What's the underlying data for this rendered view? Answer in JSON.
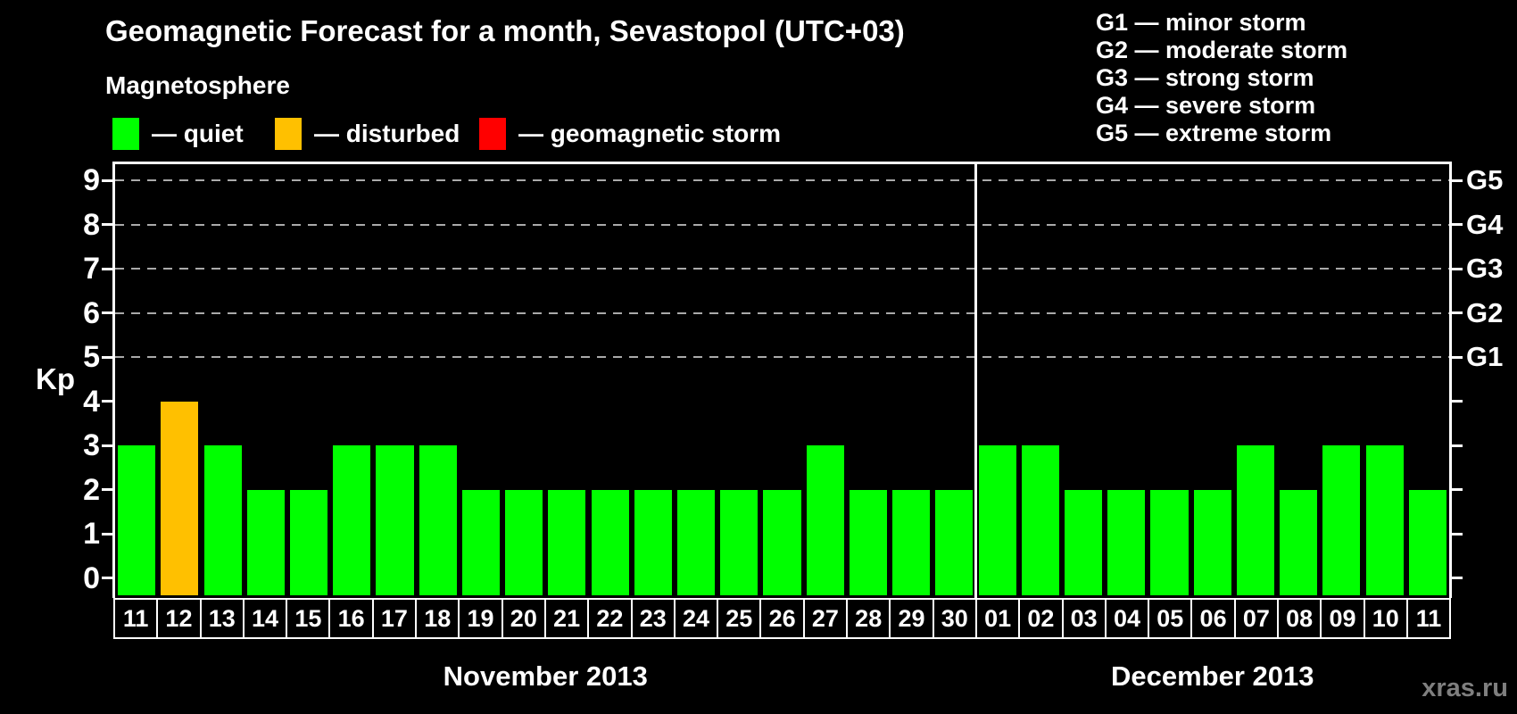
{
  "title": "Geomagnetic Forecast for a month, Sevastopol (UTC+03)",
  "subtitle": "Magnetosphere",
  "watermark": "xras.ru",
  "colors": {
    "quiet": "#00FF00",
    "disturbed": "#FFC000",
    "storm": "#FF0000",
    "axis": "#FFFFFF",
    "grid": "#AAAAAA",
    "background": "#000000",
    "watermark_text": "#7F7F7F"
  },
  "legend": {
    "items": [
      {
        "key": "quiet",
        "label": "— quiet"
      },
      {
        "key": "disturbed",
        "label": "— disturbed"
      },
      {
        "key": "storm",
        "label": "— geomagnetic storm"
      }
    ]
  },
  "g_legend": [
    "G1 — minor storm",
    "G2 — moderate storm",
    "G3 — strong storm",
    "G4 — severe storm",
    "G5 — extreme storm"
  ],
  "axis": {
    "y_label": "Kp",
    "y_ticks": [
      0,
      1,
      2,
      3,
      4,
      5,
      6,
      7,
      8,
      9
    ],
    "g_ticks": [
      {
        "label": "G5",
        "kp": 9
      },
      {
        "label": "G4",
        "kp": 8
      },
      {
        "label": "G3",
        "kp": 7
      },
      {
        "label": "G2",
        "kp": 6
      },
      {
        "label": "G1",
        "kp": 5
      }
    ]
  },
  "months": [
    {
      "label": "November 2013",
      "days": [
        {
          "day": "11",
          "kp": 3,
          "state": "quiet"
        },
        {
          "day": "12",
          "kp": 4,
          "state": "disturbed"
        },
        {
          "day": "13",
          "kp": 3,
          "state": "quiet"
        },
        {
          "day": "14",
          "kp": 2,
          "state": "quiet"
        },
        {
          "day": "15",
          "kp": 2,
          "state": "quiet"
        },
        {
          "day": "16",
          "kp": 3,
          "state": "quiet"
        },
        {
          "day": "17",
          "kp": 3,
          "state": "quiet"
        },
        {
          "day": "18",
          "kp": 3,
          "state": "quiet"
        },
        {
          "day": "19",
          "kp": 2,
          "state": "quiet"
        },
        {
          "day": "20",
          "kp": 2,
          "state": "quiet"
        },
        {
          "day": "21",
          "kp": 2,
          "state": "quiet"
        },
        {
          "day": "22",
          "kp": 2,
          "state": "quiet"
        },
        {
          "day": "23",
          "kp": 2,
          "state": "quiet"
        },
        {
          "day": "24",
          "kp": 2,
          "state": "quiet"
        },
        {
          "day": "25",
          "kp": 2,
          "state": "quiet"
        },
        {
          "day": "26",
          "kp": 2,
          "state": "quiet"
        },
        {
          "day": "27",
          "kp": 3,
          "state": "quiet"
        },
        {
          "day": "28",
          "kp": 2,
          "state": "quiet"
        },
        {
          "day": "29",
          "kp": 2,
          "state": "quiet"
        },
        {
          "day": "30",
          "kp": 2,
          "state": "quiet"
        }
      ]
    },
    {
      "label": "December 2013",
      "days": [
        {
          "day": "01",
          "kp": 3,
          "state": "quiet"
        },
        {
          "day": "02",
          "kp": 3,
          "state": "quiet"
        },
        {
          "day": "03",
          "kp": 2,
          "state": "quiet"
        },
        {
          "day": "04",
          "kp": 2,
          "state": "quiet"
        },
        {
          "day": "05",
          "kp": 2,
          "state": "quiet"
        },
        {
          "day": "06",
          "kp": 2,
          "state": "quiet"
        },
        {
          "day": "07",
          "kp": 3,
          "state": "quiet"
        },
        {
          "day": "08",
          "kp": 2,
          "state": "quiet"
        },
        {
          "day": "09",
          "kp": 3,
          "state": "quiet"
        },
        {
          "day": "10",
          "kp": 3,
          "state": "quiet"
        },
        {
          "day": "11",
          "kp": 2,
          "state": "quiet"
        }
      ]
    }
  ],
  "chart_data": {
    "type": "bar",
    "title": "Geomagnetic Forecast for a month, Sevastopol (UTC+03)",
    "xlabel": "",
    "ylabel": "Kp",
    "ylim": [
      0,
      9
    ],
    "grid": "dashed horizontal lines at Kp 5-9 only",
    "legend_position": "top-left (quiet/disturbed/storm), top-right (G1-G5 scale)",
    "right_axis": {
      "G1": 5,
      "G2": 6,
      "G3": 7,
      "G4": 8,
      "G5": 9
    },
    "categories": [
      "Nov 11",
      "Nov 12",
      "Nov 13",
      "Nov 14",
      "Nov 15",
      "Nov 16",
      "Nov 17",
      "Nov 18",
      "Nov 19",
      "Nov 20",
      "Nov 21",
      "Nov 22",
      "Nov 23",
      "Nov 24",
      "Nov 25",
      "Nov 26",
      "Nov 27",
      "Nov 28",
      "Nov 29",
      "Nov 30",
      "Dec 01",
      "Dec 02",
      "Dec 03",
      "Dec 04",
      "Dec 05",
      "Dec 06",
      "Dec 07",
      "Dec 08",
      "Dec 09",
      "Dec 10",
      "Dec 11"
    ],
    "series": [
      {
        "name": "Kp forecast",
        "values": [
          3,
          4,
          3,
          2,
          2,
          3,
          3,
          3,
          2,
          2,
          2,
          2,
          2,
          2,
          2,
          2,
          3,
          2,
          2,
          2,
          3,
          3,
          2,
          2,
          2,
          2,
          3,
          2,
          3,
          3,
          2
        ],
        "bar_states": [
          "quiet",
          "disturbed",
          "quiet",
          "quiet",
          "quiet",
          "quiet",
          "quiet",
          "quiet",
          "quiet",
          "quiet",
          "quiet",
          "quiet",
          "quiet",
          "quiet",
          "quiet",
          "quiet",
          "quiet",
          "quiet",
          "quiet",
          "quiet",
          "quiet",
          "quiet",
          "quiet",
          "quiet",
          "quiet",
          "quiet",
          "quiet",
          "quiet",
          "quiet",
          "quiet",
          "quiet"
        ]
      }
    ]
  }
}
